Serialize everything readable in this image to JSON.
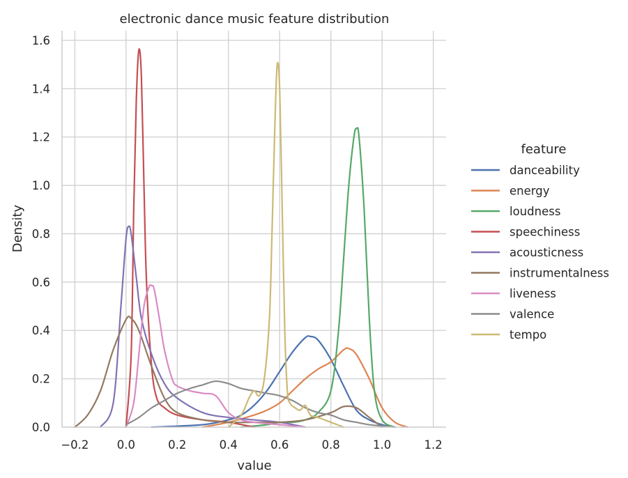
{
  "chart_data": {
    "type": "line",
    "title": "electronic dance music feature distribution",
    "xlabel": "value",
    "ylabel": "Density",
    "xlim": [
      -0.25,
      1.25
    ],
    "ylim": [
      0,
      1.64
    ],
    "xticks": [
      -0.2,
      0.0,
      0.2,
      0.4,
      0.6,
      0.8,
      1.0,
      1.2
    ],
    "xtick_labels": [
      "−0.2",
      "0.0",
      "0.2",
      "0.4",
      "0.6",
      "0.8",
      "1.0",
      "1.2"
    ],
    "yticks": [
      0.0,
      0.2,
      0.4,
      0.6,
      0.8,
      1.0,
      1.2,
      1.4,
      1.6
    ],
    "ytick_labels": [
      "0.0",
      "0.2",
      "0.4",
      "0.6",
      "0.8",
      "1.0",
      "1.2",
      "1.4",
      "1.6"
    ],
    "grid": true,
    "legend": {
      "title": "feature",
      "placement": "right"
    },
    "series": [
      {
        "name": "danceability",
        "color": "#4c72b0",
        "x": [
          0.1,
          0.3,
          0.4,
          0.45,
          0.5,
          0.55,
          0.6,
          0.65,
          0.7,
          0.72,
          0.75,
          0.8,
          0.85,
          0.9,
          0.95,
          1.0,
          1.05
        ],
        "y": [
          0.0,
          0.01,
          0.03,
          0.05,
          0.09,
          0.15,
          0.23,
          0.31,
          0.37,
          0.375,
          0.36,
          0.28,
          0.17,
          0.07,
          0.03,
          0.01,
          0.0
        ]
      },
      {
        "name": "energy",
        "color": "#dd8452",
        "x": [
          0.3,
          0.4,
          0.5,
          0.55,
          0.6,
          0.65,
          0.7,
          0.75,
          0.8,
          0.85,
          0.87,
          0.9,
          0.95,
          1.0,
          1.05,
          1.1
        ],
        "y": [
          0.0,
          0.02,
          0.05,
          0.07,
          0.1,
          0.15,
          0.2,
          0.24,
          0.27,
          0.32,
          0.325,
          0.3,
          0.2,
          0.08,
          0.02,
          0.0
        ]
      },
      {
        "name": "loudness",
        "color": "#55a868",
        "x": [
          0.45,
          0.55,
          0.6,
          0.65,
          0.7,
          0.75,
          0.8,
          0.83,
          0.85,
          0.87,
          0.89,
          0.9,
          0.91,
          0.93,
          0.95,
          0.97,
          1.0,
          1.05
        ],
        "y": [
          0.0,
          0.01,
          0.02,
          0.02,
          0.03,
          0.06,
          0.15,
          0.4,
          0.7,
          1.0,
          1.2,
          1.235,
          1.2,
          0.9,
          0.45,
          0.15,
          0.03,
          0.0
        ]
      },
      {
        "name": "speechiness",
        "color": "#c44e52",
        "x": [
          0.0,
          0.02,
          0.03,
          0.04,
          0.05,
          0.06,
          0.07,
          0.08,
          0.1,
          0.12,
          0.15,
          0.2,
          0.3,
          0.4,
          0.5
        ],
        "y": [
          0.0,
          0.3,
          0.9,
          1.35,
          1.56,
          1.45,
          1.0,
          0.6,
          0.25,
          0.12,
          0.08,
          0.05,
          0.03,
          0.02,
          0.0
        ]
      },
      {
        "name": "acousticness",
        "color": "#8172b3",
        "x": [
          -0.1,
          -0.05,
          -0.02,
          0.0,
          0.01,
          0.02,
          0.04,
          0.06,
          0.1,
          0.15,
          0.2,
          0.3,
          0.4,
          0.5,
          0.6,
          0.7
        ],
        "y": [
          0.0,
          0.1,
          0.5,
          0.78,
          0.83,
          0.8,
          0.62,
          0.45,
          0.3,
          0.18,
          0.12,
          0.06,
          0.04,
          0.03,
          0.02,
          0.0
        ]
      },
      {
        "name": "instrumentalness",
        "color": "#937860",
        "x": [
          -0.2,
          -0.15,
          -0.1,
          -0.05,
          0.0,
          0.02,
          0.05,
          0.1,
          0.15,
          0.2,
          0.3,
          0.4,
          0.5,
          0.6,
          0.7,
          0.8,
          0.85,
          0.9,
          0.95,
          1.0
        ],
        "y": [
          0.0,
          0.05,
          0.15,
          0.32,
          0.445,
          0.45,
          0.4,
          0.25,
          0.12,
          0.06,
          0.03,
          0.02,
          0.02,
          0.02,
          0.03,
          0.06,
          0.085,
          0.08,
          0.04,
          0.0
        ]
      },
      {
        "name": "liveness",
        "color": "#da8bc3",
        "x": [
          0.0,
          0.03,
          0.05,
          0.07,
          0.09,
          0.1,
          0.11,
          0.13,
          0.15,
          0.18,
          0.2,
          0.25,
          0.3,
          0.35,
          0.4,
          0.45,
          0.5,
          0.6,
          0.7
        ],
        "y": [
          0.0,
          0.1,
          0.3,
          0.5,
          0.58,
          0.585,
          0.57,
          0.45,
          0.32,
          0.2,
          0.17,
          0.15,
          0.14,
          0.13,
          0.06,
          0.03,
          0.02,
          0.01,
          0.0
        ]
      },
      {
        "name": "valence",
        "color": "#8c8c8c",
        "x": [
          0.0,
          0.05,
          0.1,
          0.15,
          0.2,
          0.25,
          0.3,
          0.35,
          0.4,
          0.45,
          0.5,
          0.55,
          0.6,
          0.65,
          0.7,
          0.75,
          0.8,
          0.85,
          0.9,
          0.95,
          1.0,
          1.05
        ],
        "y": [
          0.01,
          0.04,
          0.08,
          0.11,
          0.14,
          0.16,
          0.175,
          0.19,
          0.18,
          0.16,
          0.15,
          0.14,
          0.13,
          0.11,
          0.08,
          0.06,
          0.05,
          0.03,
          0.02,
          0.01,
          0.005,
          0.0
        ]
      },
      {
        "name": "tempo",
        "color": "#ccb974",
        "x": [
          0.4,
          0.45,
          0.48,
          0.5,
          0.52,
          0.54,
          0.56,
          0.57,
          0.58,
          0.59,
          0.6,
          0.61,
          0.62,
          0.63,
          0.64,
          0.66,
          0.68,
          0.7,
          0.72,
          0.75,
          0.8,
          0.85
        ],
        "y": [
          0.0,
          0.05,
          0.12,
          0.15,
          0.13,
          0.2,
          0.45,
          0.8,
          1.2,
          1.495,
          1.4,
          0.9,
          0.4,
          0.15,
          0.1,
          0.08,
          0.07,
          0.09,
          0.05,
          0.04,
          0.02,
          0.0
        ]
      }
    ]
  }
}
